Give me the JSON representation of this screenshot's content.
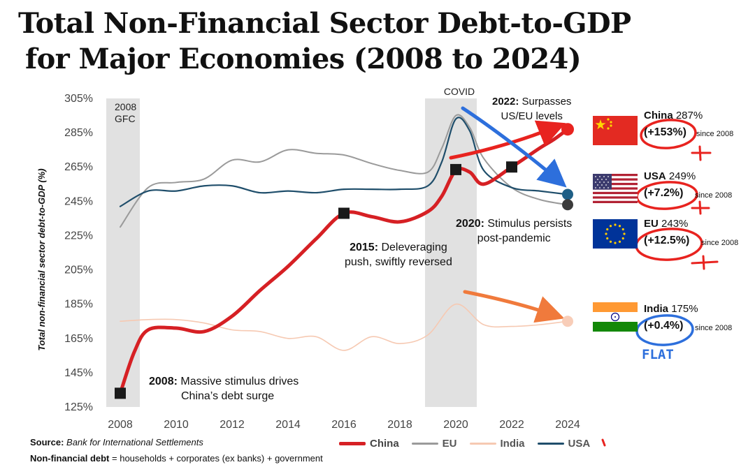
{
  "title": {
    "line1": "Total Non-Financial Sector Debt-to-GDP",
    "line2": "for Major Economies (2008 to 2024)"
  },
  "chart_data": {
    "type": "line",
    "ylabel": "Total non-financial sector debt-to-GDP (%)",
    "ylim": [
      125,
      305
    ],
    "yticks": [
      "125%",
      "145%",
      "165%",
      "185%",
      "205%",
      "225%",
      "245%",
      "265%",
      "285%",
      "305%"
    ],
    "xlim": [
      2008,
      2024
    ],
    "xticks": [
      "2008",
      "2010",
      "2012",
      "2014",
      "2016",
      "2018",
      "2020",
      "2022",
      "2024"
    ],
    "grid": false,
    "legend": "bottom",
    "colors": {
      "China": "#d62024",
      "EU": "#9a9a9a",
      "India": "#f6c9b2",
      "USA": "#1f4e6b"
    },
    "series": [
      {
        "name": "China",
        "x": [
          2008,
          2008.5,
          2009,
          2010,
          2011,
          2012,
          2013,
          2014,
          2015,
          2016,
          2017,
          2018,
          2019,
          2019.5,
          2020,
          2020.5,
          2021,
          2022,
          2023,
          2023.5,
          2024
        ],
        "values": [
          133,
          157,
          170,
          171,
          169,
          178,
          193,
          207,
          223,
          238,
          236,
          233,
          239,
          248,
          263,
          262,
          255,
          265,
          276,
          281,
          287
        ]
      },
      {
        "name": "EU",
        "x": [
          2008,
          2009,
          2010,
          2011,
          2012,
          2013,
          2014,
          2015,
          2016,
          2017,
          2018,
          2019,
          2019.5,
          2020,
          2020.5,
          2021,
          2022,
          2023,
          2024
        ],
        "values": [
          230,
          253,
          256,
          258,
          269,
          268,
          275,
          273,
          272,
          267,
          263,
          262,
          276,
          295,
          288,
          270,
          253,
          246,
          243
        ]
      },
      {
        "name": "India",
        "x": [
          2008,
          2009,
          2010,
          2011,
          2012,
          2013,
          2014,
          2015,
          2016,
          2017,
          2018,
          2019,
          2020,
          2021,
          2022,
          2023,
          2024
        ],
        "values": [
          175,
          176,
          176,
          174,
          170,
          169,
          165,
          166,
          158,
          166,
          162,
          167,
          185,
          173,
          172,
          173,
          175
        ]
      },
      {
        "name": "USA",
        "x": [
          2008,
          2009,
          2010,
          2011,
          2012,
          2013,
          2014,
          2015,
          2016,
          2017,
          2018,
          2019,
          2019.5,
          2020,
          2020.5,
          2021,
          2022,
          2023,
          2024
        ],
        "values": [
          242,
          251,
          251,
          254,
          254,
          250,
          251,
          250,
          252,
          252,
          252,
          254,
          268,
          293,
          286,
          263,
          253,
          251,
          249
        ]
      }
    ],
    "shaded_periods": [
      {
        "label_lines": [
          "2008",
          "GFC"
        ],
        "x": [
          2008,
          2008.7
        ]
      },
      {
        "label_lines": [
          "COVID"
        ],
        "x": [
          2019.4,
          2020.75
        ]
      }
    ],
    "markers": [
      {
        "x": 2008,
        "y": 133
      },
      {
        "x": 2016,
        "y": 238
      },
      {
        "x": 2020,
        "y": 263.5
      },
      {
        "x": 2022,
        "y": 265
      }
    ],
    "endpoints": [
      {
        "series": "China",
        "x": 2024,
        "y": 287
      },
      {
        "series": "USA",
        "x": 2024,
        "y": 249
      },
      {
        "series": "EU",
        "x": 2024,
        "y": 243
      },
      {
        "series": "India",
        "x": 2024,
        "y": 175
      }
    ],
    "annotations": [
      {
        "bold": "2008:",
        "text": "Massive stimulus drives",
        "line2": "China’s debt surge"
      },
      {
        "bold": "2015:",
        "text": "Deleveraging",
        "line2": "push, swiftly reversed"
      },
      {
        "bold": "2020:",
        "text": "Stimulus persists",
        "line2": "post-pandemic"
      },
      {
        "bold": "2022:",
        "text": "Surpasses",
        "line2": "US/EU levels"
      }
    ],
    "end_labels": [
      {
        "country": "China",
        "value": "287%",
        "change": "(+153%)",
        "since": "since 2008"
      },
      {
        "country": "USA",
        "value": "249%",
        "change": "(+7.2%)",
        "since": "since 2008"
      },
      {
        "country": "EU",
        "value": "243%",
        "change": "(+12.5%)",
        "since": "since 2008"
      },
      {
        "country": "India",
        "value": "175%",
        "change": "(+0.4%)",
        "since": "since 2008"
      }
    ]
  },
  "handwritten": {
    "flat_label": "FLAT"
  },
  "legend_items": [
    "China",
    "EU",
    "India",
    "USA"
  ],
  "footer": {
    "source_label": "Source:",
    "source_text": "Bank for International Settlements",
    "note_label": "Non-financial debt",
    "note_text": "= households + corporates (ex banks) + government"
  }
}
